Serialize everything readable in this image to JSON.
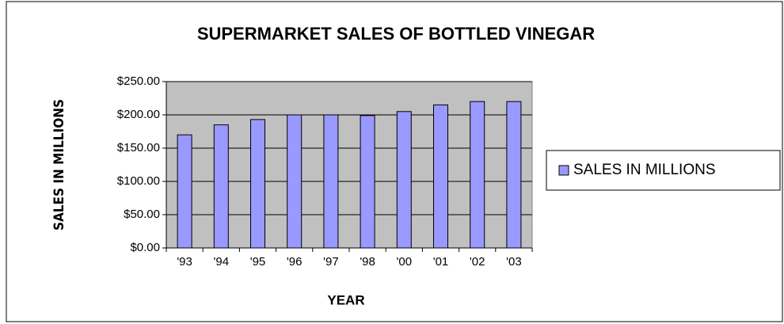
{
  "chart_data": {
    "type": "bar",
    "title": "SUPERMARKET SALES OF BOTTLED VINEGAR",
    "x_label": "YEAR",
    "y_label": "SALES IN MILLIONS",
    "categories": [
      "'93",
      "'94",
      "'95",
      "'96",
      "'97",
      "'98",
      "'00",
      "'01",
      "'02",
      "'03"
    ],
    "series": [
      {
        "name": "SALES IN MILLIONS",
        "color": "#9999ff",
        "values": [
          170,
          185,
          193,
          200,
          200,
          199,
          205,
          215,
          220,
          220
        ]
      }
    ],
    "ylim": [
      0,
      250
    ],
    "yticks": [
      {
        "value": 0,
        "label": "$0.00"
      },
      {
        "value": 50,
        "label": "$50.00"
      },
      {
        "value": 100,
        "label": "$100.00"
      },
      {
        "value": 150,
        "label": "$150.00"
      },
      {
        "value": 200,
        "label": "$200.00"
      },
      {
        "value": 250,
        "label": "$250.00"
      }
    ],
    "grid": true,
    "plot_background": "#c0c0c0",
    "legend": "right"
  }
}
